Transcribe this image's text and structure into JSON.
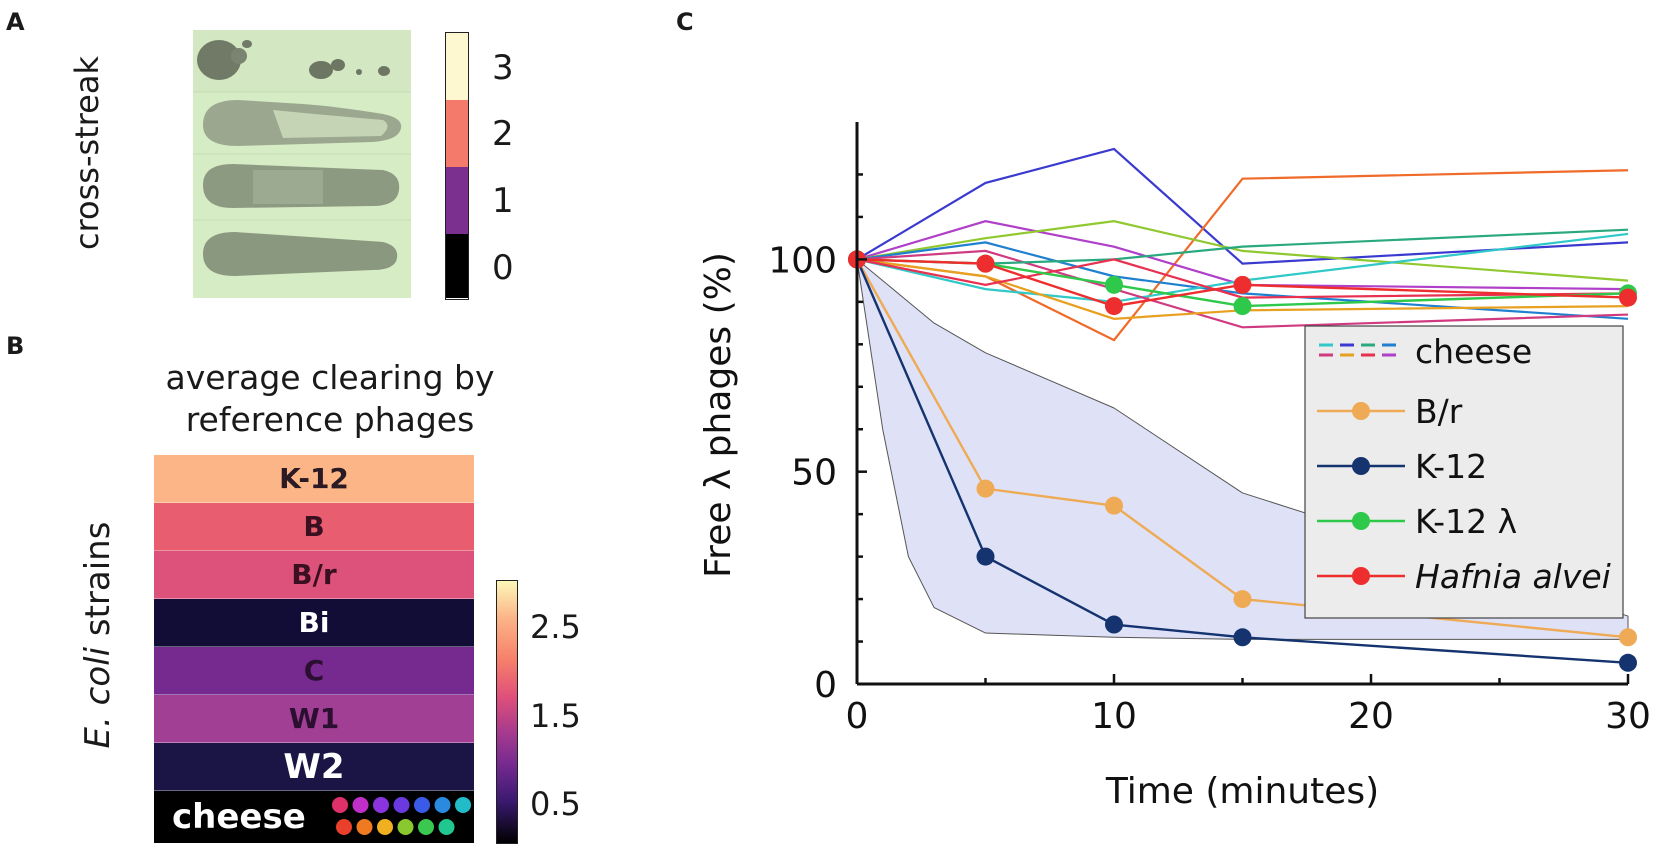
{
  "panels": {
    "a": {
      "label": "A",
      "ylabel": "cross-streak",
      "scale_ticks": [
        "3",
        "2",
        "1",
        "0"
      ],
      "scale_colors": [
        "#fdf8d0",
        "#f47a6c",
        "#7b2f8e",
        "#000000"
      ]
    },
    "b": {
      "label": "B",
      "title_line1": "average clearing by",
      "title_line2": "reference phages",
      "ylabel_italic": "E. coli",
      "ylabel_rest": " strains",
      "colorbar_ticks": [
        "2.5",
        "1.5",
        "0.5"
      ],
      "rows": [
        {
          "name": "K-12",
          "value": 2.75,
          "color": "#fcb587",
          "text_color": "#2a1a24"
        },
        {
          "name": "B",
          "value": 1.8,
          "color": "#e85d70",
          "text_color": "#3a1020"
        },
        {
          "name": "B/r",
          "value": 1.7,
          "color": "#dc527a",
          "text_color": "#3a1020"
        },
        {
          "name": "Bi",
          "value": 0.1,
          "color": "#120d36",
          "text_color": "#ffffff"
        },
        {
          "name": "C",
          "value": 1.0,
          "color": "#762a90",
          "text_color": "#2a0f30"
        },
        {
          "name": "W1",
          "value": 1.25,
          "color": "#a03f93",
          "text_color": "#2a0f30"
        },
        {
          "name": "W2",
          "value": 0.15,
          "color": "#1a1545",
          "text_color": "#ffffff"
        },
        {
          "name": "cheese",
          "value": 0.0,
          "color": "#000000",
          "text_color": "#ffffff"
        }
      ],
      "cheese_dot_colors": [
        "#e0306a",
        "#c030c8",
        "#8a34e0",
        "#6a3ae0",
        "#3a5ae8",
        "#2a8ae0",
        "#22bcc8",
        "#e8402a",
        "#ef7a22",
        "#f0b020",
        "#8ac830",
        "#3ac850",
        "#20c890"
      ]
    },
    "c": {
      "label": "C"
    }
  },
  "chart_data": {
    "type": "line",
    "xlabel": "Time (minutes)",
    "ylabel": "Free λ phages (%)",
    "xlim": [
      0,
      30
    ],
    "ylim": [
      0,
      130
    ],
    "xticks": [
      0,
      10,
      20,
      30
    ],
    "yticks": [
      0,
      50,
      100
    ],
    "band": {
      "name": "shaded range",
      "x": [
        0,
        1,
        2,
        3,
        5,
        10,
        15,
        30
      ],
      "upper": [
        100,
        95,
        90,
        85,
        78,
        65,
        45,
        16
      ],
      "lower": [
        100,
        60,
        30,
        18,
        12,
        11,
        10.5,
        10.5
      ],
      "color": "#dfe2f7"
    },
    "series": [
      {
        "name": "cheese-1",
        "color": "#3a3ad0",
        "legend": false,
        "x": [
          0,
          5,
          10,
          15,
          30
        ],
        "values": [
          100,
          118,
          126,
          99,
          104
        ]
      },
      {
        "name": "cheese-2",
        "color": "#f06a2a",
        "legend": false,
        "x": [
          0,
          5,
          10,
          15,
          30
        ],
        "values": [
          100,
          96,
          81,
          119,
          121
        ]
      },
      {
        "name": "cheese-3",
        "color": "#b040c8",
        "legend": false,
        "x": [
          0,
          5,
          10,
          15,
          30
        ],
        "values": [
          100,
          109,
          103,
          94,
          93
        ]
      },
      {
        "name": "cheese-4",
        "color": "#90c830",
        "legend": false,
        "x": [
          0,
          5,
          10,
          15,
          30
        ],
        "values": [
          100,
          105,
          109,
          102,
          95
        ]
      },
      {
        "name": "cheese-5",
        "color": "#2080d0",
        "legend": false,
        "x": [
          0,
          5,
          10,
          15,
          30
        ],
        "values": [
          100,
          104,
          96,
          92,
          86
        ]
      },
      {
        "name": "cheese-6",
        "color": "#30c8c8",
        "legend": false,
        "x": [
          0,
          5,
          10,
          15,
          30
        ],
        "values": [
          100,
          93,
          90,
          95,
          106
        ]
      },
      {
        "name": "cheese-7",
        "color": "#d03a80",
        "legend": false,
        "x": [
          0,
          5,
          10,
          15,
          30
        ],
        "values": [
          100,
          102,
          93,
          84,
          87
        ]
      },
      {
        "name": "cheese-8",
        "color": "#e8a020",
        "legend": false,
        "x": [
          0,
          5,
          10,
          15,
          30
        ],
        "values": [
          100,
          96,
          86,
          88,
          89
        ]
      },
      {
        "name": "cheese-9",
        "color": "#2aa880",
        "legend": false,
        "x": [
          0,
          5,
          10,
          15,
          30
        ],
        "values": [
          100,
          99,
          100,
          103,
          107
        ]
      },
      {
        "name": "cheese-10",
        "color": "#e83050",
        "legend": false,
        "x": [
          0,
          5,
          10,
          15,
          30
        ],
        "values": [
          100,
          94,
          100,
          91,
          92
        ]
      },
      {
        "name": "B/r",
        "color": "#eeaa55",
        "legend": true,
        "x": [
          0,
          5,
          10,
          15,
          30
        ],
        "values": [
          100,
          46,
          42,
          20,
          11
        ]
      },
      {
        "name": "K-12",
        "color": "#15336e",
        "legend": true,
        "x": [
          0,
          5,
          10,
          15,
          30
        ],
        "values": [
          100,
          30,
          14,
          11,
          5
        ]
      },
      {
        "name": "K-12 λ",
        "color": "#2ec84a",
        "legend": true,
        "x": [
          0,
          5,
          10,
          15,
          30
        ],
        "values": [
          100,
          99,
          94,
          89,
          92
        ]
      },
      {
        "name": "Hafnia alvei",
        "color": "#ee2e2e",
        "legend": true,
        "italic": true,
        "x": [
          0,
          5,
          10,
          15,
          30
        ],
        "values": [
          100,
          99,
          89,
          94,
          91
        ]
      }
    ],
    "legend": {
      "position": "right",
      "entries": [
        {
          "label": "cheese",
          "type": "dashed"
        },
        {
          "label": "B/r",
          "color": "#eeaa55"
        },
        {
          "label": "K-12",
          "color": "#15336e"
        },
        {
          "label": "K-12 λ",
          "color": "#2ec84a"
        },
        {
          "label": "Hafnia alvei",
          "color": "#ee2e2e",
          "italic": true
        }
      ],
      "cheese_dash_colors_top": [
        "#30c8c8",
        "#3a3ad0",
        "#2aa880",
        "#2080d0"
      ],
      "cheese_dash_colors_bottom": [
        "#d03a80",
        "#e8a020",
        "#e83050",
        "#b040c8"
      ]
    }
  }
}
